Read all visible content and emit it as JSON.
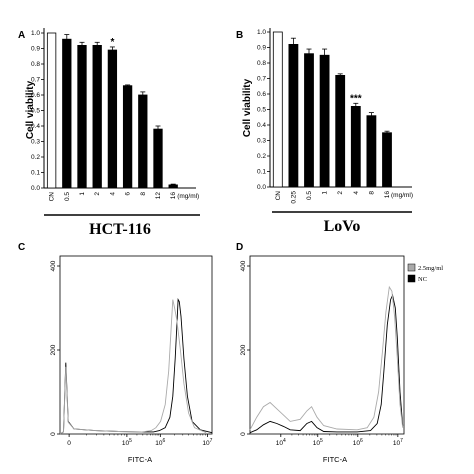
{
  "chart_data": [
    {
      "panel": "A",
      "type": "bar",
      "ylabel": "Cell viability",
      "cell_line": "HCT-116",
      "unit": "(mg/ml)",
      "categories": [
        "CN",
        "0.5",
        "1",
        "2",
        "4",
        "6",
        "8",
        "12",
        "16"
      ],
      "values": [
        1.0,
        0.96,
        0.92,
        0.92,
        0.89,
        0.66,
        0.6,
        0.38,
        0.02
      ],
      "errors": [
        0.0,
        0.03,
        0.02,
        0.02,
        0.02,
        0.005,
        0.02,
        0.02,
        0.005
      ],
      "bar_colors": [
        "#ffffff",
        "#000000",
        "#000000",
        "#000000",
        "#000000",
        "#000000",
        "#000000",
        "#000000",
        "#000000"
      ],
      "significance": [
        {
          "category": "4",
          "label": "*"
        }
      ],
      "ylim": [
        0,
        1.0
      ],
      "yticks": [
        "0.0",
        "0.1",
        "0.2",
        "0.3",
        "0.4",
        "0.5",
        "0.6",
        "0.7",
        "0.8",
        "0.9",
        "1.0"
      ]
    },
    {
      "panel": "B",
      "type": "bar",
      "ylabel": "Cell viability",
      "cell_line": "LoVo",
      "unit": "(mg/ml)",
      "categories": [
        "CN",
        "0.25",
        "0.5",
        "1",
        "2",
        "4",
        "8",
        "16"
      ],
      "values": [
        1.0,
        0.92,
        0.86,
        0.85,
        0.72,
        0.52,
        0.46,
        0.35
      ],
      "errors": [
        0.0,
        0.04,
        0.03,
        0.04,
        0.01,
        0.02,
        0.02,
        0.01
      ],
      "bar_colors": [
        "#ffffff",
        "#000000",
        "#000000",
        "#000000",
        "#000000",
        "#000000",
        "#000000",
        "#000000"
      ],
      "significance": [
        {
          "category": "4",
          "label": "***"
        }
      ],
      "ylim": [
        0,
        1.0
      ],
      "yticks": [
        "0.0",
        "0.1",
        "0.2",
        "0.3",
        "0.4",
        "0.5",
        "0.6",
        "0.7",
        "0.8",
        "0.9",
        "1.0"
      ]
    },
    {
      "panel": "C",
      "type": "line",
      "xlabel": "FITC-A",
      "xscale": "log",
      "xticks": [
        "0",
        "10^5",
        "10^6",
        "10^7"
      ],
      "yticks": [
        "0",
        "200",
        "400"
      ],
      "ylim": [
        0,
        400
      ],
      "series": [
        {
          "color": "#000000",
          "points": [
            [
              0,
              0
            ],
            [
              0.03,
              5
            ],
            [
              0.05,
              170
            ],
            [
              0.07,
              30
            ],
            [
              0.12,
              12
            ],
            [
              0.3,
              8
            ],
            [
              0.5,
              6
            ],
            [
              0.7,
              5
            ],
            [
              0.8,
              5
            ],
            [
              0.85,
              8
            ],
            [
              0.9,
              15
            ],
            [
              0.94,
              40
            ],
            [
              0.965,
              90
            ],
            [
              0.985,
              180
            ],
            [
              1.0,
              260
            ],
            [
              1.01,
              320
            ],
            [
              1.02,
              315
            ],
            [
              1.035,
              280
            ],
            [
              1.06,
              180
            ],
            [
              1.09,
              90
            ],
            [
              1.13,
              30
            ],
            [
              1.2,
              10
            ],
            [
              1.3,
              3
            ]
          ]
        },
        {
          "color": "#aaaaaa",
          "points": [
            [
              0,
              0
            ],
            [
              0.03,
              5
            ],
            [
              0.05,
              160
            ],
            [
              0.07,
              28
            ],
            [
              0.12,
              12
            ],
            [
              0.3,
              8
            ],
            [
              0.5,
              6
            ],
            [
              0.7,
              5
            ],
            [
              0.78,
              8
            ],
            [
              0.82,
              15
            ],
            [
              0.86,
              30
            ],
            [
              0.9,
              70
            ],
            [
              0.93,
              150
            ],
            [
              0.95,
              250
            ],
            [
              0.965,
              320
            ],
            [
              0.98,
              300
            ],
            [
              1.0,
              270
            ],
            [
              1.03,
              200
            ],
            [
              1.06,
              120
            ],
            [
              1.1,
              50
            ],
            [
              1.15,
              15
            ],
            [
              1.25,
              3
            ]
          ]
        }
      ]
    },
    {
      "panel": "D",
      "type": "line",
      "xlabel": "FITC-A",
      "xscale": "log",
      "xticks": [
        "10^4",
        "10^5",
        "10^6",
        "10^7"
      ],
      "yticks": [
        "0",
        "200",
        "400"
      ],
      "ylim": [
        0,
        400
      ],
      "legend": [
        {
          "label": "2.5mg/ml",
          "color": "#aaaaaa"
        },
        {
          "label": "NC",
          "color": "#000000"
        }
      ],
      "legend_position": "top-right",
      "series": [
        {
          "name": "NC",
          "color": "#000000",
          "points": [
            [
              0,
              3
            ],
            [
              0.1,
              10
            ],
            [
              0.2,
              22
            ],
            [
              0.3,
              30
            ],
            [
              0.4,
              25
            ],
            [
              0.5,
              18
            ],
            [
              0.6,
              10
            ],
            [
              0.75,
              8
            ],
            [
              0.85,
              25
            ],
            [
              0.92,
              30
            ],
            [
              1.0,
              15
            ],
            [
              1.1,
              6
            ],
            [
              1.3,
              5
            ],
            [
              1.6,
              5
            ],
            [
              1.8,
              8
            ],
            [
              1.9,
              25
            ],
            [
              1.96,
              70
            ],
            [
              2.0,
              150
            ],
            [
              2.05,
              260
            ],
            [
              2.1,
              320
            ],
            [
              2.13,
              330
            ],
            [
              2.17,
              300
            ],
            [
              2.2,
              230
            ],
            [
              2.24,
              100
            ],
            [
              2.28,
              20
            ]
          ]
        },
        {
          "name": "2.5mg/ml",
          "color": "#aaaaaa",
          "points": [
            [
              0,
              10
            ],
            [
              0.1,
              40
            ],
            [
              0.2,
              65
            ],
            [
              0.3,
              75
            ],
            [
              0.4,
              60
            ],
            [
              0.5,
              45
            ],
            [
              0.6,
              30
            ],
            [
              0.75,
              35
            ],
            [
              0.85,
              55
            ],
            [
              0.92,
              65
            ],
            [
              1.0,
              40
            ],
            [
              1.1,
              20
            ],
            [
              1.3,
              12
            ],
            [
              1.6,
              10
            ],
            [
              1.75,
              15
            ],
            [
              1.85,
              40
            ],
            [
              1.92,
              100
            ],
            [
              1.98,
              200
            ],
            [
              2.03,
              290
            ],
            [
              2.08,
              350
            ],
            [
              2.12,
              340
            ],
            [
              2.16,
              280
            ],
            [
              2.2,
              180
            ],
            [
              2.24,
              70
            ],
            [
              2.28,
              15
            ]
          ]
        }
      ]
    }
  ]
}
